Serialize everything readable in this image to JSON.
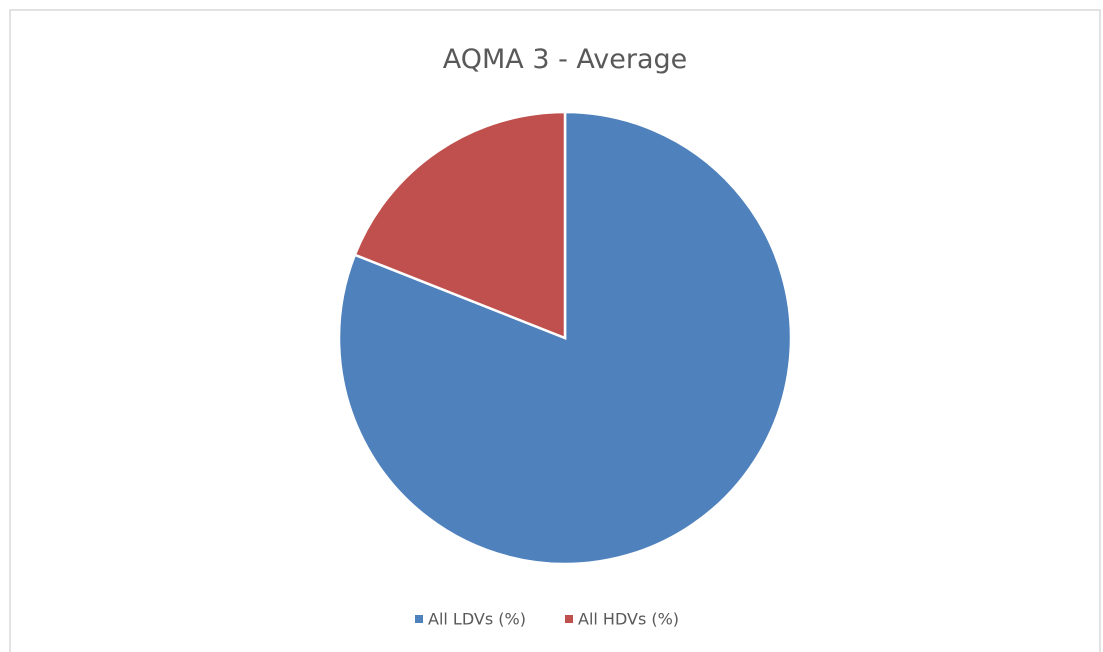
{
  "chart_data": {
    "type": "pie",
    "title": "AQMA 3 -  Average",
    "categories": [
      "All LDVs (%)",
      "All HDVs (%)"
    ],
    "values": [
      81,
      19
    ],
    "colors": [
      "#4f81bd",
      "#c0504d"
    ],
    "legend": "bottom"
  }
}
